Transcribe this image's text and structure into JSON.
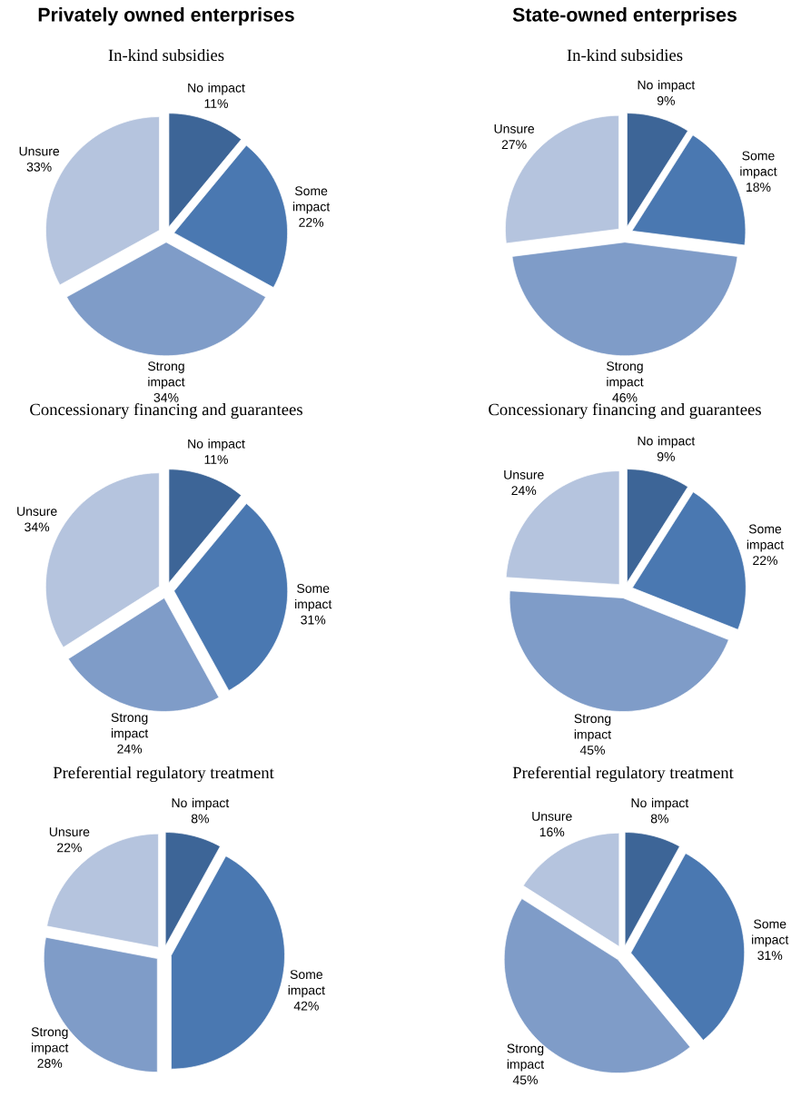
{
  "chart_data": [
    {
      "type": "pie",
      "title": "Privately owned enterprises",
      "subtitle": "In-kind subsidies",
      "categories": [
        "No impact",
        "Some impact",
        "Strong impact",
        "Unsure"
      ],
      "values": [
        11,
        22,
        34,
        33
      ],
      "value_labels": [
        "11%",
        "22%",
        "34%",
        "33%"
      ],
      "colors": [
        "#3d6597",
        "#4a78b1",
        "#7f9cc8",
        "#b5c4de"
      ]
    },
    {
      "type": "pie",
      "title": "State-owned enterprises",
      "subtitle": "In-kind subsidies",
      "categories": [
        "No impact",
        "Some impact",
        "Strong impact",
        "Unsure"
      ],
      "values": [
        9,
        18,
        46,
        27
      ],
      "value_labels": [
        "9%",
        "18%",
        "46%",
        "27%"
      ],
      "colors": [
        "#3d6597",
        "#4a78b1",
        "#7f9cc8",
        "#b5c4de"
      ]
    },
    {
      "type": "pie",
      "title": "Concessionary financing and guarantees",
      "categories": [
        "No impact",
        "Some impact",
        "Strong impact",
        "Unsure"
      ],
      "values": [
        11,
        31,
        24,
        34
      ],
      "value_labels": [
        "11%",
        "31%",
        "24%",
        "34%"
      ],
      "colors": [
        "#3d6597",
        "#4a78b1",
        "#7f9cc8",
        "#b5c4de"
      ]
    },
    {
      "type": "pie",
      "title": "Concessionary financing and guarantees",
      "categories": [
        "No impact",
        "Some impact",
        "Strong impact",
        "Unsure"
      ],
      "values": [
        9,
        22,
        45,
        24
      ],
      "value_labels": [
        "9%",
        "22%",
        "45%",
        "24%"
      ],
      "colors": [
        "#3d6597",
        "#4a78b1",
        "#7f9cc8",
        "#b5c4de"
      ]
    },
    {
      "type": "pie",
      "title": "Preferential regulatory treatment",
      "categories": [
        "No impact",
        "Some impact",
        "Strong impact",
        "Unsure"
      ],
      "values": [
        8,
        42,
        28,
        22
      ],
      "value_labels": [
        "8%",
        "42%",
        "28%",
        "22%"
      ],
      "colors": [
        "#3d6597",
        "#4a78b1",
        "#7f9cc8",
        "#b5c4de"
      ]
    },
    {
      "type": "pie",
      "title": "Preferential regulatory treatment",
      "categories": [
        "No impact",
        "Some impact",
        "Strong impact",
        "Unsure"
      ],
      "values": [
        8,
        31,
        45,
        16
      ],
      "value_labels": [
        "8%",
        "31%",
        "45%",
        "16%"
      ],
      "colors": [
        "#3d6597",
        "#4a78b1",
        "#7f9cc8",
        "#b5c4de"
      ]
    }
  ]
}
